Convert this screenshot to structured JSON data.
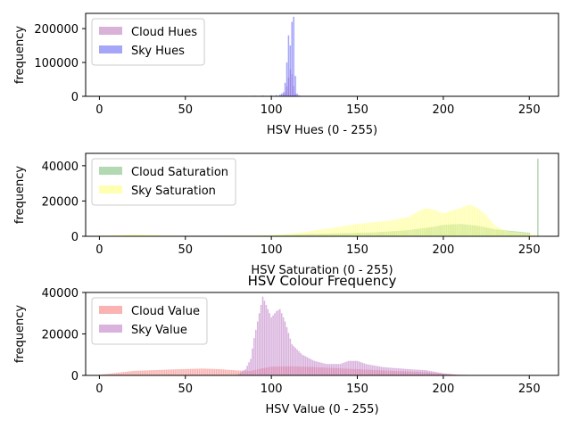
{
  "figure": {
    "title": "HSV Colour Frequency"
  },
  "chart_data": [
    {
      "type": "bar",
      "xlabel": "HSV Hues (0 - 255)",
      "ylabel": "frequency",
      "xlim": [
        -8,
        267
      ],
      "ylim": [
        0,
        245000
      ],
      "xticks": [
        0,
        50,
        100,
        150,
        200,
        250
      ],
      "yticks": [
        0,
        100000,
        200000
      ],
      "legend_position": "top-left",
      "series": [
        {
          "name": "Cloud Hues",
          "color": "#bf7fbf",
          "points": [
            [
              96,
              600
            ],
            [
              100,
              800
            ],
            [
              103,
              1500
            ],
            [
              105,
              2500
            ],
            [
              106,
              3000
            ],
            [
              107,
              6000
            ],
            [
              108,
              12000
            ],
            [
              109,
              30000
            ],
            [
              110,
              55000
            ],
            [
              111,
              80000
            ],
            [
              112,
              65000
            ],
            [
              113,
              30000
            ],
            [
              114,
              8000
            ],
            [
              115,
              2000
            ]
          ]
        },
        {
          "name": "Sky Hues",
          "color": "#6a6af5",
          "points": [
            [
              80,
              1000
            ],
            [
              85,
              1500
            ],
            [
              90,
              2000
            ],
            [
              95,
              2500
            ],
            [
              100,
              3000
            ],
            [
              103,
              3500
            ],
            [
              105,
              5000
            ],
            [
              106,
              8000
            ],
            [
              107,
              12000
            ],
            [
              108,
              40000
            ],
            [
              109,
              100000
            ],
            [
              110,
              180000
            ],
            [
              111,
              150000
            ],
            [
              112,
              220000
            ],
            [
              113,
              235000
            ],
            [
              114,
              60000
            ],
            [
              115,
              8000
            ],
            [
              116,
              3000
            ],
            [
              117,
              1500
            ],
            [
              118,
              1000
            ]
          ]
        }
      ]
    },
    {
      "type": "bar",
      "xlabel": "HSV Saturation (0 - 255)",
      "ylabel": "frequency",
      "xlim": [
        -8,
        267
      ],
      "ylim": [
        0,
        47000
      ],
      "xticks": [
        0,
        50,
        100,
        150,
        200,
        250
      ],
      "yticks": [
        0,
        20000,
        40000
      ],
      "legend_position": "top-left",
      "series": [
        {
          "name": "Cloud Saturation",
          "color": "#7fbf7f",
          "curve": [
            [
              0,
              200
            ],
            [
              20,
              300
            ],
            [
              100,
              400
            ],
            [
              110,
              800
            ],
            [
              120,
              1200
            ],
            [
              140,
              1700
            ],
            [
              160,
              2200
            ],
            [
              180,
              3500
            ],
            [
              195,
              5500
            ],
            [
              200,
              6500
            ],
            [
              210,
              7000
            ],
            [
              220,
              6000
            ],
            [
              230,
              4000
            ],
            [
              240,
              3000
            ],
            [
              250,
              2000
            ]
          ],
          "points": [
            [
              255,
              44000
            ]
          ]
        },
        {
          "name": "Sky Saturation",
          "color": "#ffff7f",
          "curve": [
            [
              0,
              400
            ],
            [
              10,
              600
            ],
            [
              20,
              1200
            ],
            [
              30,
              800
            ],
            [
              40,
              400
            ],
            [
              50,
              300
            ],
            [
              80,
              300
            ],
            [
              100,
              700
            ],
            [
              110,
              1400
            ],
            [
              120,
              2500
            ],
            [
              130,
              4000
            ],
            [
              140,
              5500
            ],
            [
              150,
              7000
            ],
            [
              160,
              8000
            ],
            [
              170,
              9000
            ],
            [
              180,
              11000
            ],
            [
              185,
              14000
            ],
            [
              190,
              16000
            ],
            [
              195,
              15000
            ],
            [
              200,
              13000
            ],
            [
              205,
              14500
            ],
            [
              210,
              16000
            ],
            [
              215,
              18000
            ],
            [
              220,
              16000
            ],
            [
              225,
              12000
            ],
            [
              230,
              6000
            ],
            [
              235,
              3500
            ],
            [
              240,
              2500
            ],
            [
              250,
              1500
            ],
            [
              254,
              500
            ]
          ]
        }
      ]
    },
    {
      "type": "bar",
      "xlabel": "HSV Value (0 - 255)",
      "ylabel": "frequency",
      "xlim": [
        -8,
        267
      ],
      "ylim": [
        0,
        40000
      ],
      "xticks": [
        0,
        50,
        100,
        150,
        200,
        250
      ],
      "yticks": [
        0,
        20000,
        40000
      ],
      "legend_position": "top-left",
      "series": [
        {
          "name": "Cloud Value",
          "color": "#f77f7f",
          "curve": [
            [
              0,
              300
            ],
            [
              10,
              1200
            ],
            [
              20,
              2200
            ],
            [
              40,
              2800
            ],
            [
              60,
              3300
            ],
            [
              70,
              3000
            ],
            [
              80,
              2400
            ],
            [
              88,
              2200
            ],
            [
              95,
              3500
            ],
            [
              100,
              4200
            ],
            [
              110,
              4400
            ],
            [
              120,
              4200
            ],
            [
              130,
              3800
            ],
            [
              150,
              3000
            ],
            [
              170,
              2200
            ],
            [
              190,
              1500
            ],
            [
              200,
              800
            ],
            [
              210,
              300
            ],
            [
              220,
              150
            ],
            [
              255,
              100
            ]
          ]
        },
        {
          "name": "Sky Value",
          "color": "#c080c8",
          "curve": [
            [
              0,
              0
            ],
            [
              80,
              0
            ],
            [
              85,
              3000
            ],
            [
              88,
              8000
            ],
            [
              90,
              18000
            ],
            [
              93,
              30000
            ],
            [
              95,
              38000
            ],
            [
              98,
              32000
            ],
            [
              100,
              28000
            ],
            [
              103,
              31000
            ],
            [
              105,
              32000
            ],
            [
              108,
              26000
            ],
            [
              112,
              15000
            ],
            [
              118,
              10000
            ],
            [
              125,
              7000
            ],
            [
              132,
              5500
            ],
            [
              140,
              5500
            ],
            [
              145,
              7000
            ],
            [
              150,
              7000
            ],
            [
              155,
              5500
            ],
            [
              165,
              4000
            ],
            [
              180,
              3000
            ],
            [
              190,
              2500
            ],
            [
              200,
              1000
            ],
            [
              205,
              500
            ],
            [
              210,
              0
            ],
            [
              255,
              0
            ]
          ]
        }
      ]
    }
  ]
}
